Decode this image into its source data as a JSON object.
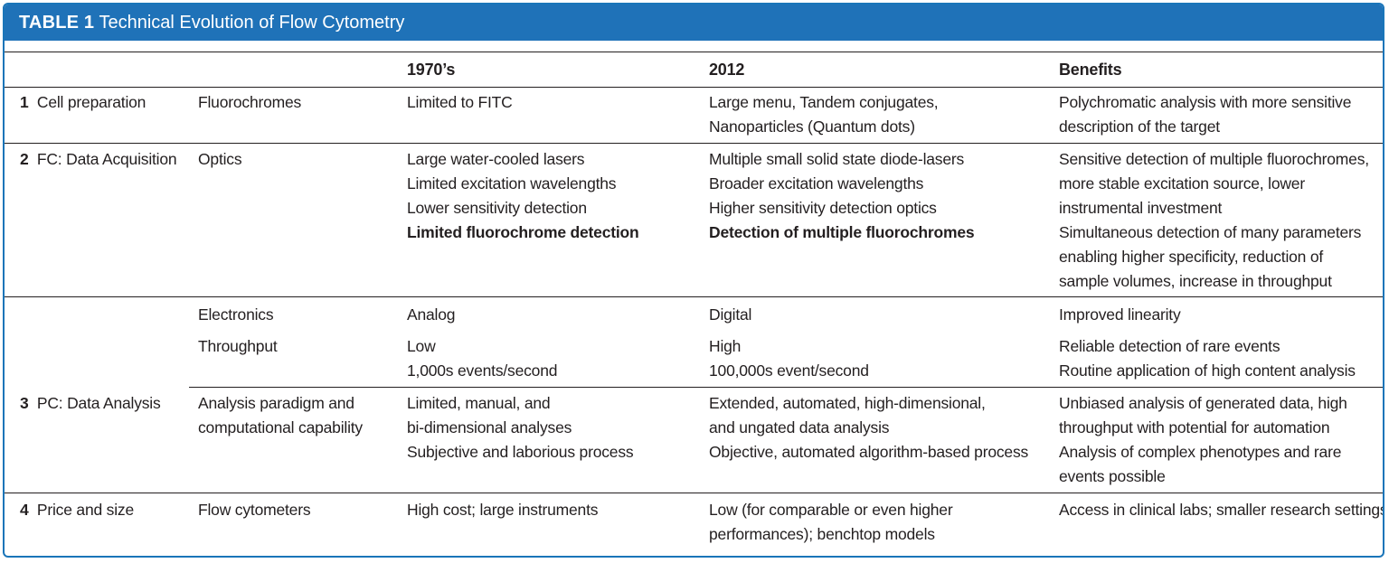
{
  "title": {
    "label": "TABLE 1",
    "text": "Technical Evolution of Flow Cytometry"
  },
  "headers": {
    "era1": "1970’s",
    "era2": "2012",
    "benefits": "Benefits"
  },
  "rows": [
    {
      "num": "1",
      "stage": "Cell preparation",
      "feature": [
        "Fluorochromes"
      ],
      "era1": [
        "Limited to FITC"
      ],
      "era2": [
        "Large menu, Tandem conjugates,",
        "Nanoparticles (Quantum dots)"
      ],
      "benefits": [
        "Polychromatic analysis with more sensitive",
        "description of the target"
      ]
    },
    {
      "num": "2",
      "stage": "FC: Data Acquisition",
      "feature": [
        "Optics"
      ],
      "era1": [
        "Large water-cooled lasers",
        "Limited excitation wavelengths",
        "Lower sensitivity detection"
      ],
      "era1_bold": "Limited fluorochrome detection",
      "era2": [
        "Multiple small solid state diode-lasers",
        "Broader excitation wavelengths",
        "Higher sensitivity detection optics"
      ],
      "era2_bold": "Detection of multiple fluorochromes",
      "benefits": [
        "Sensitive detection of multiple fluorochromes,",
        "more stable excitation source, lower",
        "instrumental investment",
        "Simultaneous detection of many parameters",
        "enabling higher specificity, reduction of",
        "sample volumes, increase in throughput"
      ]
    },
    {
      "num": "",
      "stage": "",
      "feature": [
        "Electronics"
      ],
      "era1": [
        "Analog"
      ],
      "era2": [
        "Digital"
      ],
      "benefits": [
        "Improved linearity"
      ]
    },
    {
      "num": "",
      "stage": "",
      "feature": [
        "Throughput"
      ],
      "era1": [
        "Low",
        "1,000s events/second"
      ],
      "era2": [
        "High",
        "100,000s event/second"
      ],
      "benefits": [
        "Reliable detection of rare events",
        "Routine application of high content analysis"
      ]
    },
    {
      "num": "3",
      "stage": "PC: Data Analysis",
      "feature": [
        "Analysis paradigm and",
        "computational capability"
      ],
      "era1": [
        "Limited, manual, and",
        "bi-dimensional analyses",
        "Subjective and laborious process"
      ],
      "era2": [
        "Extended, automated, high-dimensional,",
        "and ungated data analysis",
        "Objective, automated algorithm-based process"
      ],
      "benefits": [
        "Unbiased analysis of generated data, high",
        "throughput with potential for automation",
        "Analysis of complex phenotypes and rare",
        "events possible"
      ]
    },
    {
      "num": "4",
      "stage": "Price and size",
      "feature": [
        "Flow cytometers"
      ],
      "era1": [
        "High cost; large instruments"
      ],
      "era2": [
        "Low (for comparable or even higher",
        "performances); benchtop models"
      ],
      "benefits": [
        "Access in clinical labs; smaller research settings"
      ]
    }
  ]
}
